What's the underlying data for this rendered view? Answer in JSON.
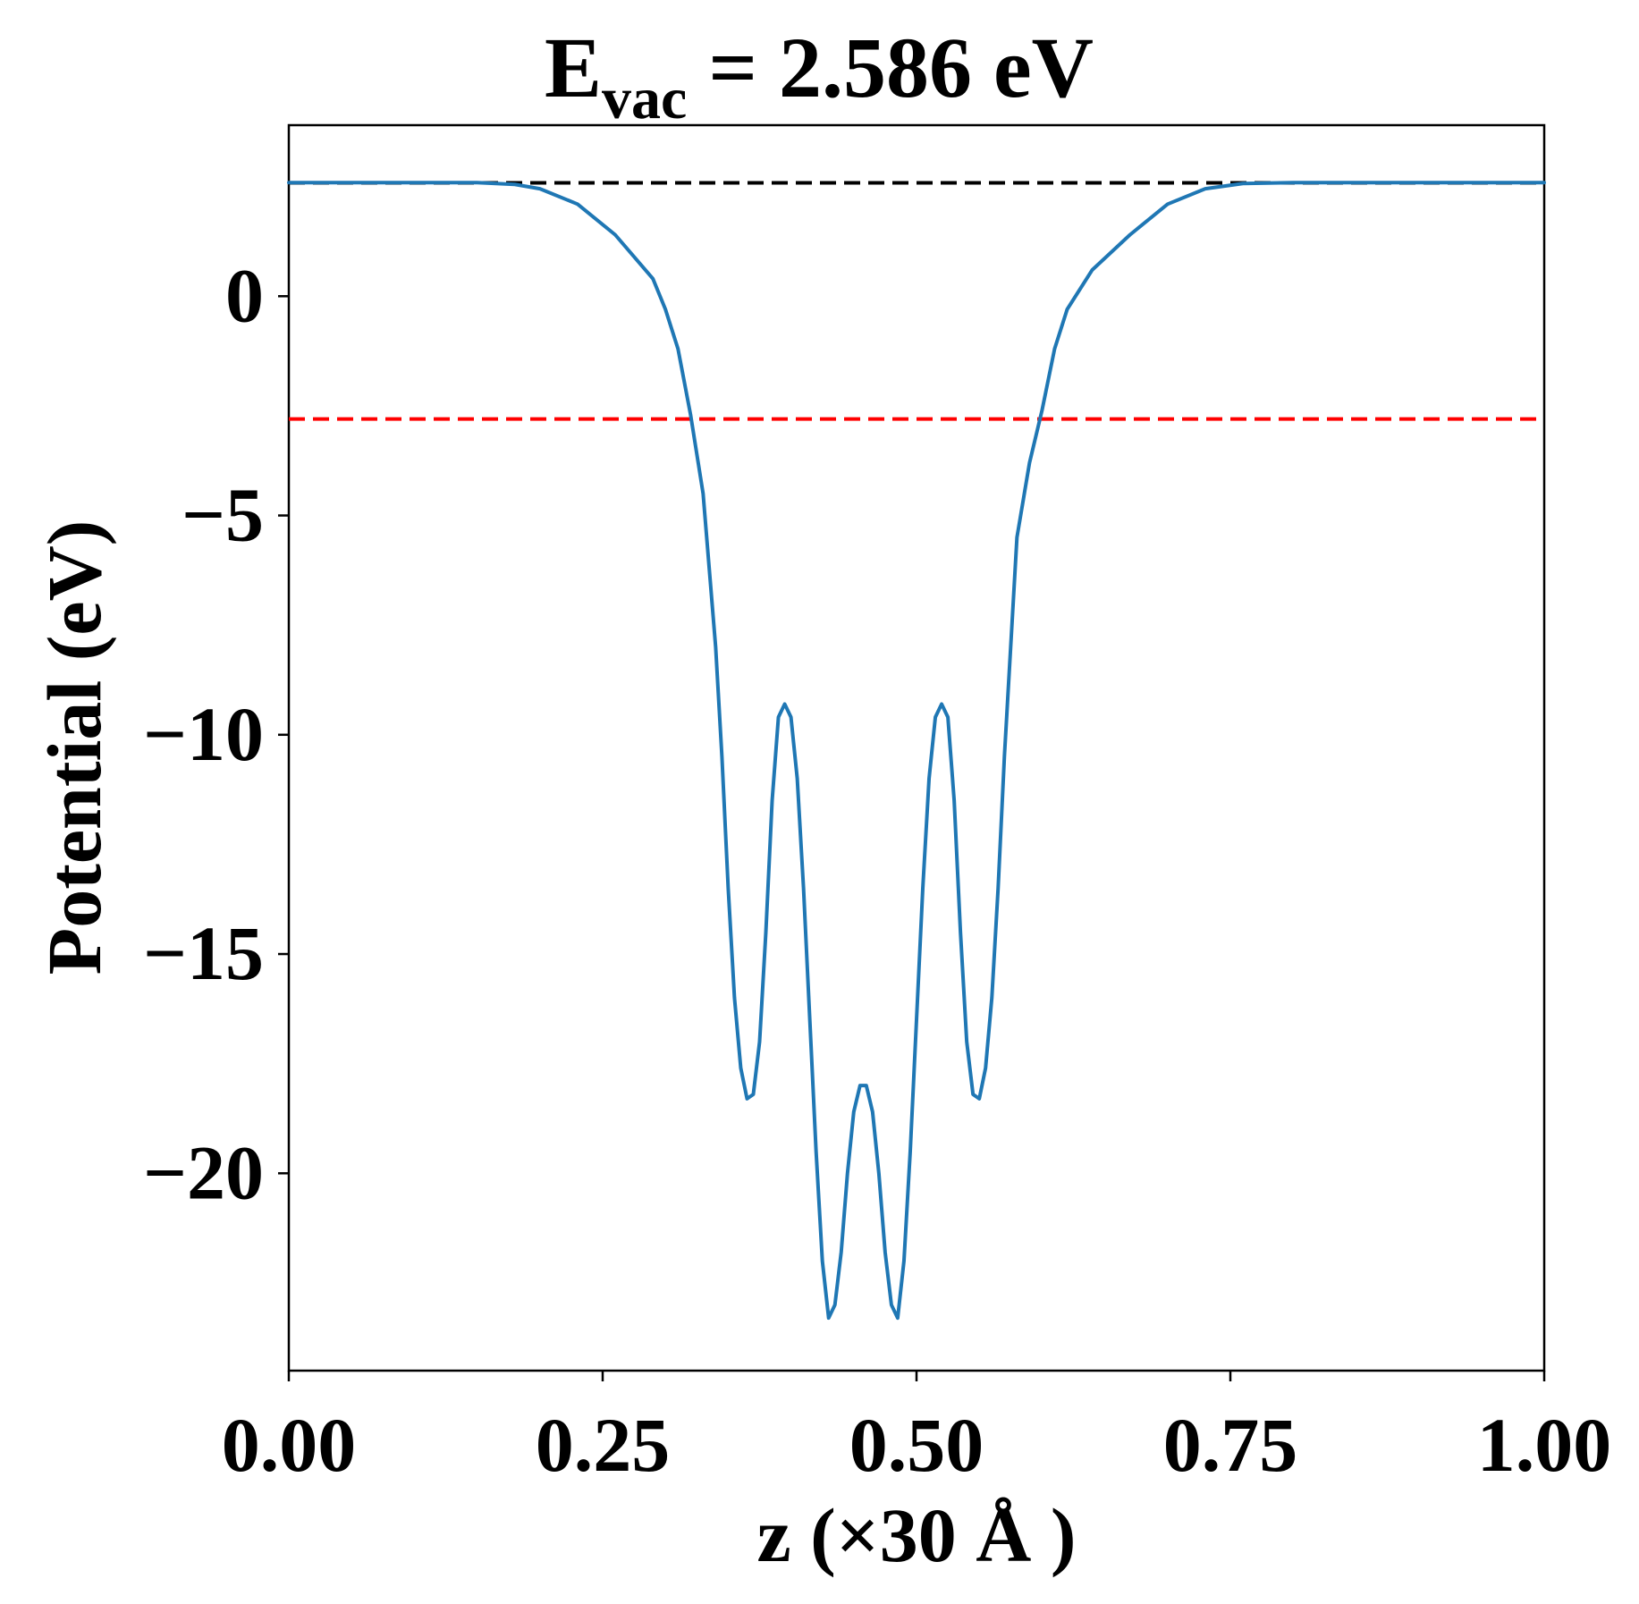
{
  "chart_data": {
    "type": "line",
    "title_main": "E",
    "title_sub": "vac",
    "title_rest": " = 2.586 eV",
    "xlabel": "z (×30 Å )",
    "ylabel": "Potential (eV)",
    "xlim": [
      0.0,
      1.0
    ],
    "ylim": [
      -24.5,
      3.9
    ],
    "xticks": [
      0.0,
      0.25,
      0.5,
      0.75,
      1.0
    ],
    "xtick_labels": [
      "0.00",
      "0.25",
      "0.50",
      "0.75",
      "1.00"
    ],
    "yticks": [
      0,
      -5,
      -10,
      -15,
      -20
    ],
    "ytick_labels": [
      "0",
      "−5",
      "−10",
      "−15",
      "−20"
    ],
    "grid": false,
    "reference_lines": [
      {
        "y": 2.586,
        "color": "#000000",
        "style": "dashed"
      },
      {
        "y": -2.8,
        "color": "#ff0000",
        "style": "dashed"
      }
    ],
    "series": [
      {
        "color": "#1f77b4",
        "points": [
          [
            0.0,
            2.59
          ],
          [
            0.05,
            2.59
          ],
          [
            0.1,
            2.59
          ],
          [
            0.15,
            2.59
          ],
          [
            0.18,
            2.55
          ],
          [
            0.2,
            2.45
          ],
          [
            0.23,
            2.1
          ],
          [
            0.26,
            1.4
          ],
          [
            0.29,
            0.4
          ],
          [
            0.3,
            -0.3
          ],
          [
            0.31,
            -1.2
          ],
          [
            0.32,
            -2.7
          ],
          [
            0.33,
            -4.5
          ],
          [
            0.34,
            -8.0
          ],
          [
            0.345,
            -10.5
          ],
          [
            0.35,
            -13.5
          ],
          [
            0.355,
            -16.0
          ],
          [
            0.36,
            -17.6
          ],
          [
            0.365,
            -18.3
          ],
          [
            0.37,
            -18.2
          ],
          [
            0.375,
            -17.0
          ],
          [
            0.38,
            -14.5
          ],
          [
            0.385,
            -11.5
          ],
          [
            0.39,
            -9.6
          ],
          [
            0.395,
            -9.3
          ],
          [
            0.4,
            -9.6
          ],
          [
            0.405,
            -11.0
          ],
          [
            0.41,
            -13.5
          ],
          [
            0.415,
            -16.5
          ],
          [
            0.42,
            -19.5
          ],
          [
            0.425,
            -22.0
          ],
          [
            0.43,
            -23.3
          ],
          [
            0.435,
            -23.0
          ],
          [
            0.44,
            -21.8
          ],
          [
            0.445,
            -20.0
          ],
          [
            0.45,
            -18.6
          ],
          [
            0.455,
            -18.0
          ],
          [
            0.46,
            -18.0
          ],
          [
            0.465,
            -18.6
          ],
          [
            0.47,
            -20.0
          ],
          [
            0.475,
            -21.8
          ],
          [
            0.48,
            -23.0
          ],
          [
            0.485,
            -23.3
          ],
          [
            0.49,
            -22.0
          ],
          [
            0.495,
            -19.5
          ],
          [
            0.5,
            -16.5
          ],
          [
            0.505,
            -13.5
          ],
          [
            0.51,
            -11.0
          ],
          [
            0.515,
            -9.6
          ],
          [
            0.52,
            -9.3
          ],
          [
            0.525,
            -9.6
          ],
          [
            0.53,
            -11.5
          ],
          [
            0.535,
            -14.5
          ],
          [
            0.54,
            -17.0
          ],
          [
            0.545,
            -18.2
          ],
          [
            0.55,
            -18.3
          ],
          [
            0.555,
            -17.6
          ],
          [
            0.56,
            -16.0
          ],
          [
            0.565,
            -13.5
          ],
          [
            0.57,
            -10.5
          ],
          [
            0.575,
            -8.0
          ],
          [
            0.58,
            -5.5
          ],
          [
            0.59,
            -3.8
          ],
          [
            0.6,
            -2.6
          ],
          [
            0.61,
            -1.2
          ],
          [
            0.62,
            -0.3
          ],
          [
            0.64,
            0.6
          ],
          [
            0.67,
            1.4
          ],
          [
            0.7,
            2.1
          ],
          [
            0.73,
            2.45
          ],
          [
            0.76,
            2.57
          ],
          [
            0.8,
            2.59
          ],
          [
            0.85,
            2.59
          ],
          [
            0.9,
            2.59
          ],
          [
            0.95,
            2.59
          ],
          [
            1.0,
            2.59
          ]
        ]
      }
    ]
  }
}
